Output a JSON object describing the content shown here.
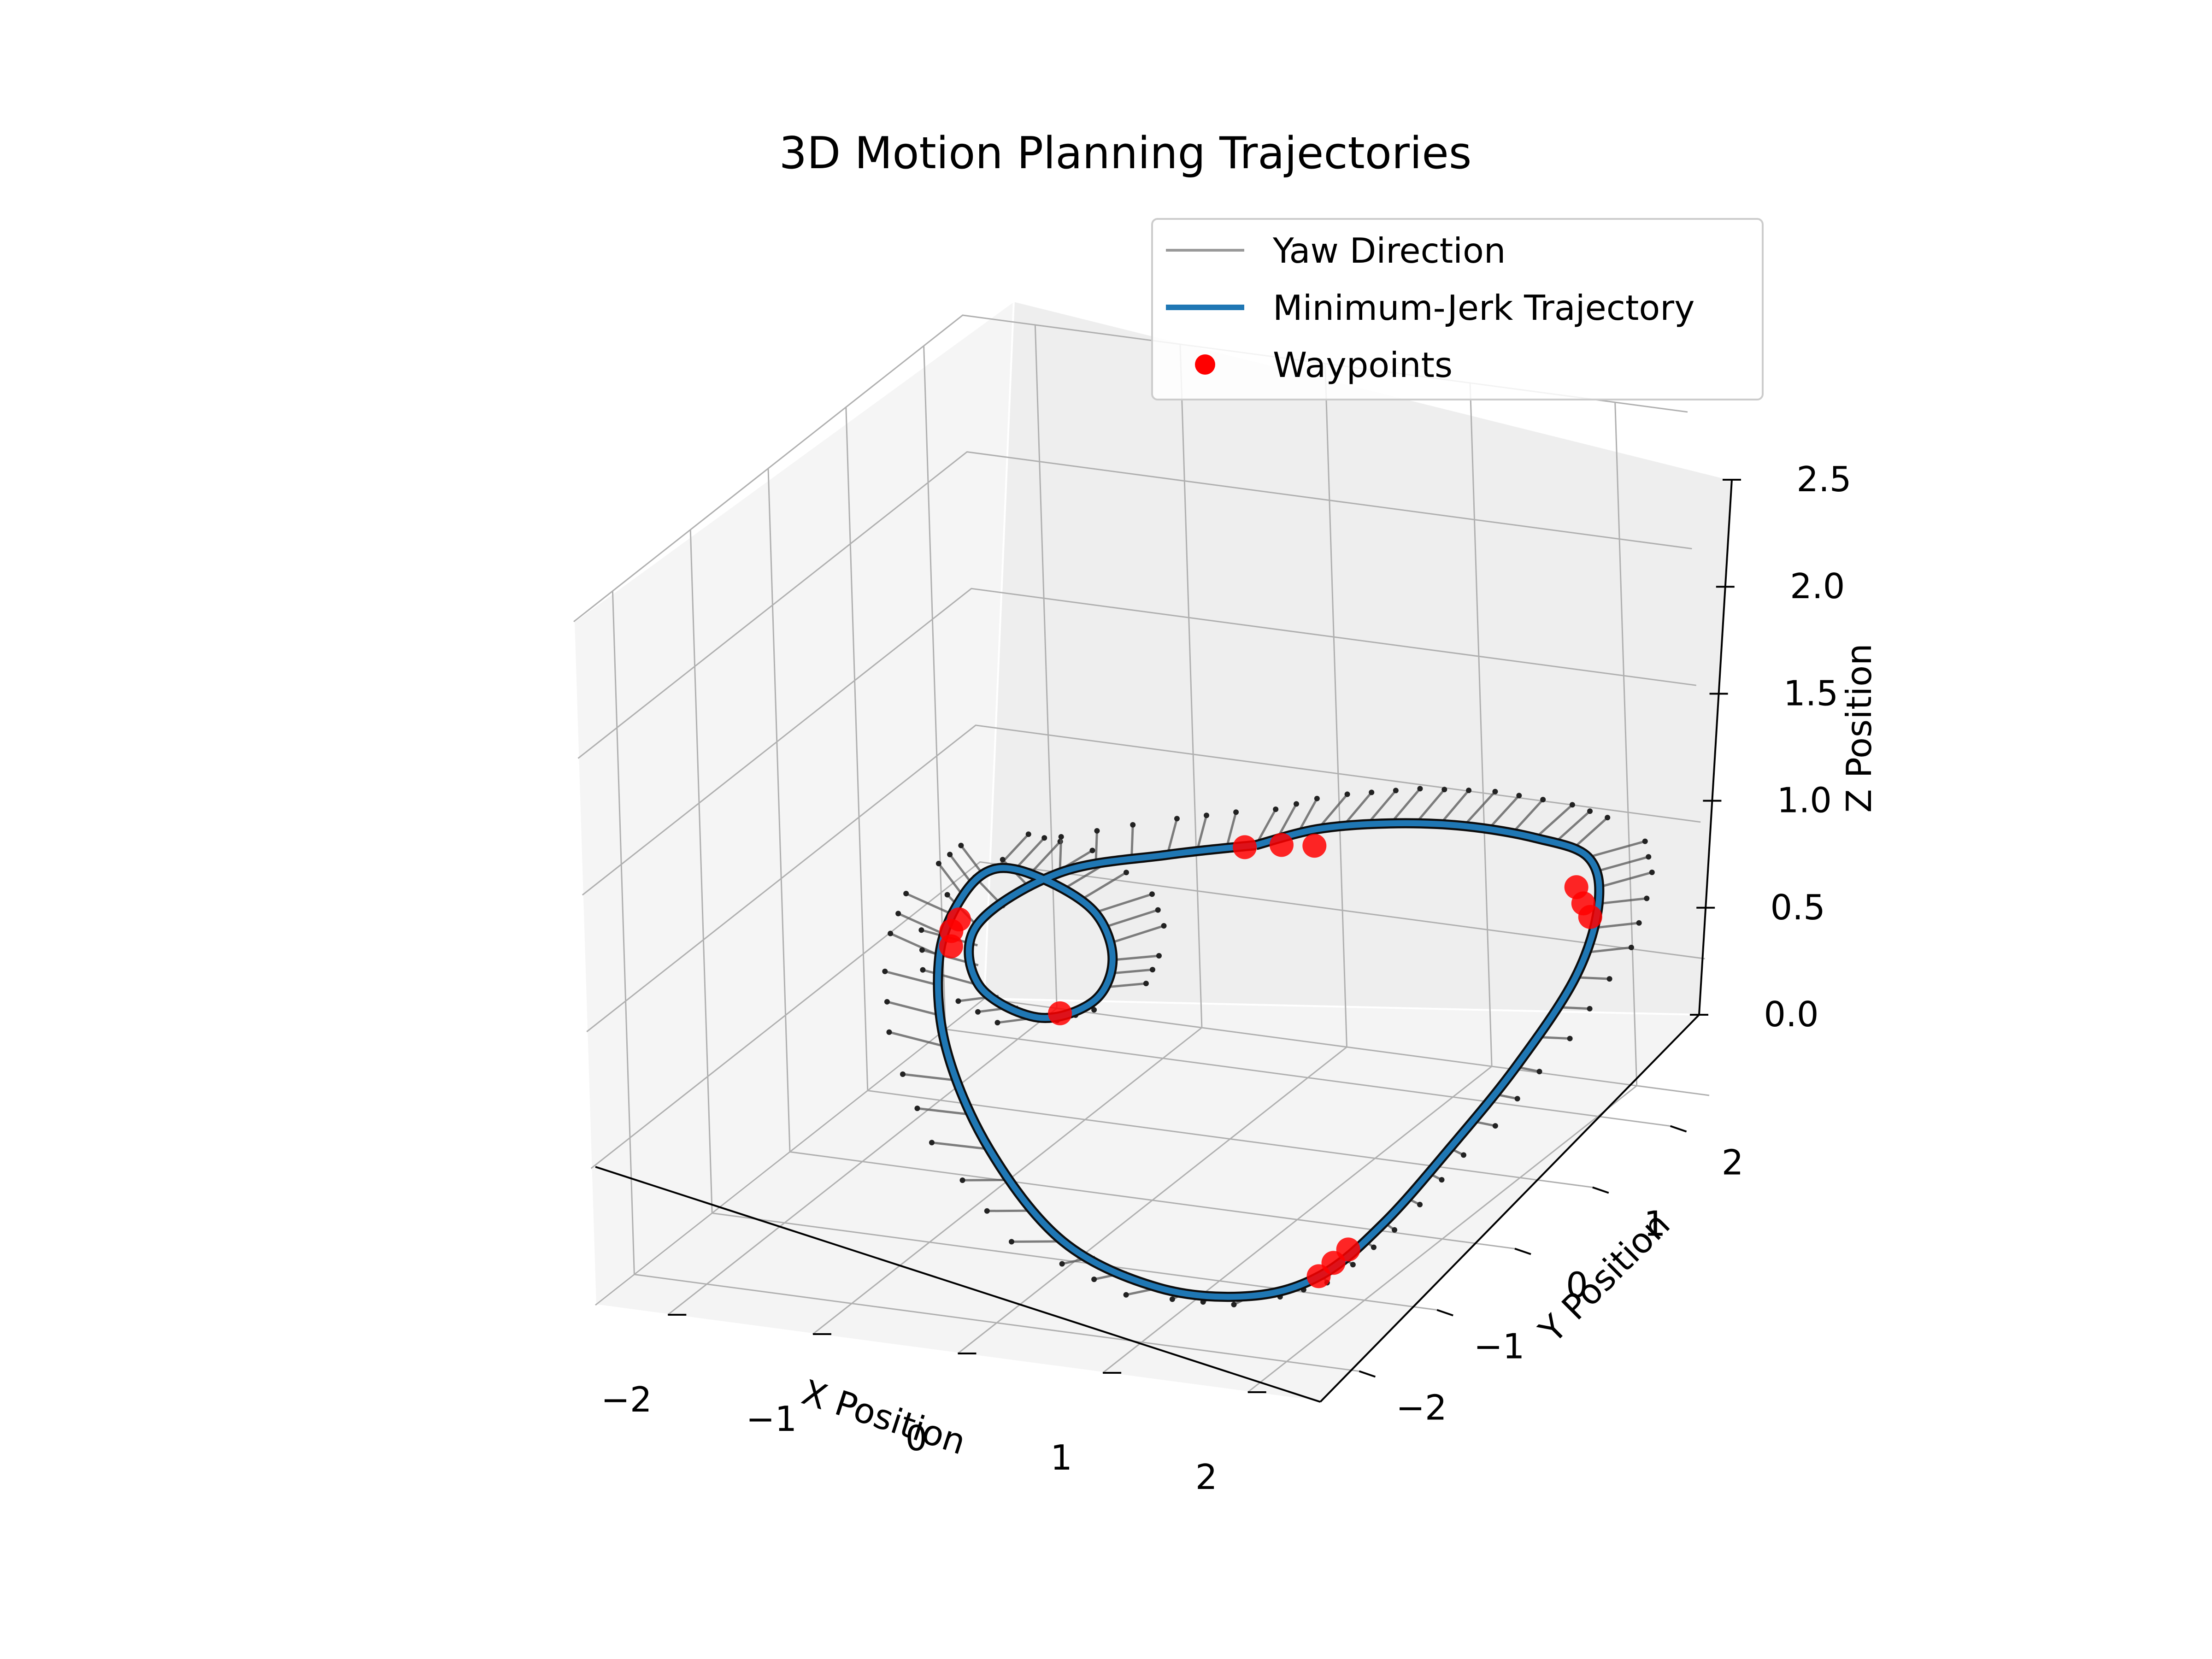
{
  "chart_data": {
    "type": "line",
    "projection": "3d",
    "title": "3D Motion Planning Trajectories",
    "xlabel": "X Position",
    "ylabel": "Y Position",
    "zlabel": "Z Position",
    "xlim": [
      -2.5,
      2.5
    ],
    "ylim": [
      -2.5,
      2.5
    ],
    "zlim": [
      0.0,
      2.5
    ],
    "xticks": [
      "−2",
      "−1",
      "0",
      "1",
      "2"
    ],
    "yticks": [
      "−2",
      "−1",
      "0",
      "1",
      "2"
    ],
    "zticks": [
      "0.0",
      "0.5",
      "1.0",
      "1.5",
      "2.0",
      "2.5"
    ],
    "grid": true,
    "legend_position": "upper-right",
    "colors": {
      "trajectory": "#1f77b4",
      "waypoints": "#ff0000",
      "yaw": "#808080",
      "pane": "#f2f2f2",
      "grid": "#b0b0b0"
    },
    "series": [
      {
        "name": "Yaw Direction",
        "kind": "quiver"
      },
      {
        "name": "Minimum-Jerk Trajectory",
        "kind": "line",
        "points": [
          [
            0.05,
            1.35,
            1.0
          ],
          [
            0.4,
            1.5,
            1.05
          ],
          [
            0.85,
            1.6,
            1.08
          ],
          [
            1.3,
            1.7,
            1.08
          ],
          [
            1.75,
            1.78,
            1.05
          ],
          [
            2.1,
            1.8,
            1.0
          ],
          [
            2.3,
            1.55,
            0.9
          ],
          [
            2.4,
            1.05,
            0.75
          ],
          [
            2.3,
            0.45,
            0.55
          ],
          [
            2.1,
            -0.05,
            0.35
          ],
          [
            1.85,
            -0.45,
            0.15
          ],
          [
            1.6,
            -0.8,
            0.02
          ],
          [
            1.3,
            -1.15,
            0.0
          ],
          [
            0.8,
            -1.4,
            0.05
          ],
          [
            0.2,
            -1.5,
            0.2
          ],
          [
            -0.4,
            -1.3,
            0.45
          ],
          [
            -0.9,
            -0.9,
            0.7
          ],
          [
            -1.2,
            -0.4,
            0.9
          ],
          [
            -1.3,
            0.1,
            1.0
          ],
          [
            -1.2,
            0.35,
            1.05
          ],
          [
            -0.9,
            0.4,
            1.02
          ],
          [
            -0.5,
            0.3,
            0.95
          ],
          [
            -0.25,
            0.05,
            0.85
          ],
          [
            -0.2,
            -0.3,
            0.78
          ],
          [
            -0.45,
            -0.55,
            0.76
          ],
          [
            -0.85,
            -0.55,
            0.85
          ],
          [
            -1.1,
            -0.1,
            0.95
          ],
          [
            -0.9,
            0.6,
            1.0
          ],
          [
            -0.4,
            1.05,
            1.0
          ],
          [
            0.05,
            1.35,
            1.0
          ]
        ]
      },
      {
        "name": "Waypoints",
        "kind": "scatter",
        "points": [
          [
            0.0,
            1.3,
            1.0
          ],
          [
            0.2,
            1.4,
            1.0
          ],
          [
            0.4,
            1.45,
            1.0
          ],
          [
            2.15,
            1.55,
            0.95
          ],
          [
            2.25,
            1.45,
            0.92
          ],
          [
            2.35,
            1.35,
            0.9
          ],
          [
            1.55,
            -0.75,
            0.0
          ],
          [
            1.6,
            -0.65,
            0.03
          ],
          [
            1.65,
            -0.55,
            0.06
          ],
          [
            -1.25,
            -0.05,
            0.95
          ],
          [
            -1.25,
            -0.15,
            0.93
          ],
          [
            -1.2,
            -0.25,
            0.9
          ],
          [
            -0.35,
            -0.45,
            0.76
          ]
        ]
      }
    ]
  }
}
